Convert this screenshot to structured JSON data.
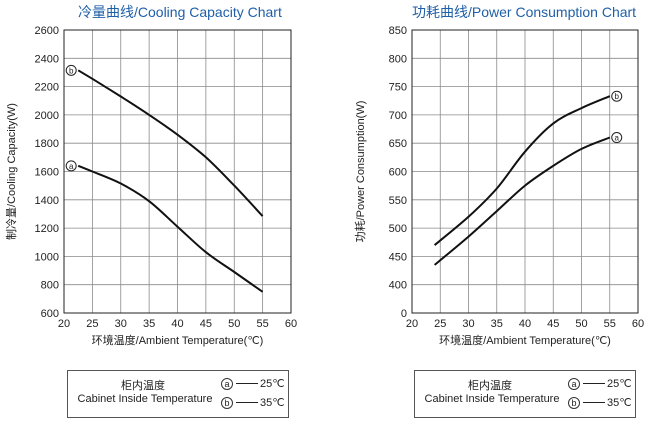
{
  "chart_data": [
    {
      "type": "line",
      "title": "冷量曲线/Cooling Capacity Chart",
      "xlabel": "环境温度/Ambient Temperature(℃)",
      "ylabel": "制冷量/Cooling  Capacity(W)",
      "xlim": [
        20,
        60
      ],
      "ylim": [
        600,
        2600
      ],
      "xticks": [
        "20",
        "25",
        "30",
        "35",
        "40",
        "45",
        "50",
        "55",
        "60"
      ],
      "yticks": [
        "600",
        "800",
        "1000",
        "1200",
        "1400",
        "1600",
        "1800",
        "2000",
        "2200",
        "2400",
        "2600"
      ],
      "grid": true,
      "series": [
        {
          "name": "ⓑ",
          "x": [
            22.5,
            25,
            30,
            35,
            40,
            45,
            50,
            55
          ],
          "y": [
            2315,
            2255,
            2130,
            2000,
            1860,
            1700,
            1500,
            1285
          ]
        },
        {
          "name": "ⓐ",
          "x": [
            22.5,
            25,
            30,
            35,
            40,
            45,
            50,
            55
          ],
          "y": [
            1640,
            1600,
            1515,
            1390,
            1210,
            1030,
            890,
            750
          ]
        }
      ]
    },
    {
      "type": "line",
      "title": "功耗曲线/Power Consumption Chart",
      "xlabel": "环境温度/Ambient Temperature(℃)",
      "ylabel": "功耗/Power Consumption(W)",
      "xlim": [
        20,
        60
      ],
      "ylim": [
        0,
        850
      ],
      "yaxis_break": [
        0,
        350
      ],
      "xticks": [
        "20",
        "25",
        "30",
        "35",
        "40",
        "45",
        "50",
        "55",
        "60"
      ],
      "yticks": [
        "0",
        "400",
        "450",
        "500",
        "550",
        "600",
        "650",
        "700",
        "750",
        "800",
        "850"
      ],
      "grid": true,
      "series": [
        {
          "name": "ⓑ",
          "x": [
            24,
            30,
            35,
            40,
            45,
            50,
            55
          ],
          "y": [
            470,
            520,
            570,
            635,
            685,
            712,
            733
          ]
        },
        {
          "name": "ⓐ",
          "x": [
            24,
            30,
            35,
            40,
            45,
            50,
            55
          ],
          "y": [
            435,
            485,
            530,
            575,
            610,
            640,
            660
          ]
        }
      ]
    }
  ],
  "legend": {
    "title_cn": "柜内温度",
    "title_en": "Cabinet Inside Temperature",
    "items": [
      {
        "marker": "a",
        "label": "25℃"
      },
      {
        "marker": "b",
        "label": "35℃"
      }
    ]
  }
}
